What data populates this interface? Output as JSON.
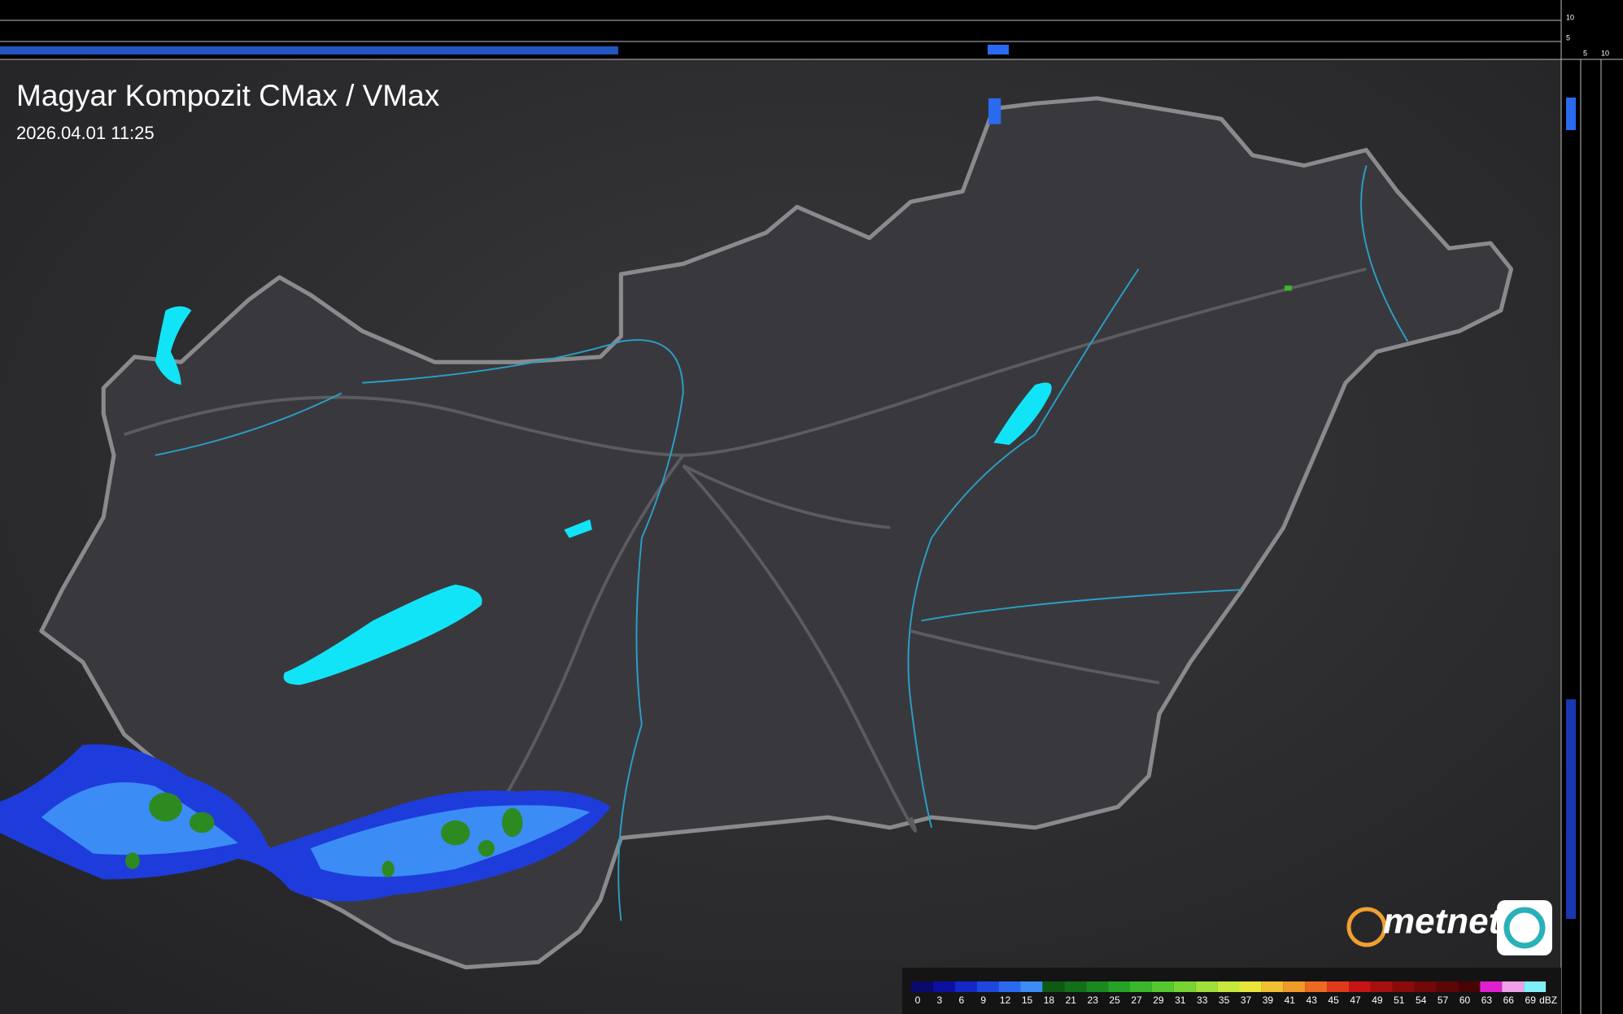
{
  "title": "Magyar Kompozit CMax / VMax",
  "timestamp": "2026.04.01 11:25",
  "logo": "metnet",
  "profile_axes": {
    "top_labels": [
      "10",
      "5"
    ],
    "side_labels": [
      "5",
      "10"
    ]
  },
  "legend": {
    "unit": "dBZ",
    "labels": [
      "0",
      "3",
      "6",
      "9",
      "12",
      "15",
      "18",
      "21",
      "23",
      "25",
      "27",
      "29",
      "31",
      "33",
      "35",
      "37",
      "39",
      "41",
      "43",
      "45",
      "47",
      "49",
      "51",
      "54",
      "57",
      "60",
      "63",
      "66",
      "69"
    ],
    "colors": [
      "#0a0a6e",
      "#0c10a0",
      "#1428c8",
      "#1e46e0",
      "#2a6af0",
      "#3c8cf5",
      "#0e5a12",
      "#137018",
      "#1a8a1e",
      "#23a426",
      "#38b82a",
      "#55c82e",
      "#78d432",
      "#9ee038",
      "#c6e83c",
      "#e8e63a",
      "#f0c030",
      "#f09a28",
      "#ec6a20",
      "#e03a1a",
      "#c81414",
      "#a80e0e",
      "#8c0a0a",
      "#740808",
      "#5c0606",
      "#480404",
      "#e020d0",
      "#f0a0e8",
      "#80f0f8"
    ]
  }
}
